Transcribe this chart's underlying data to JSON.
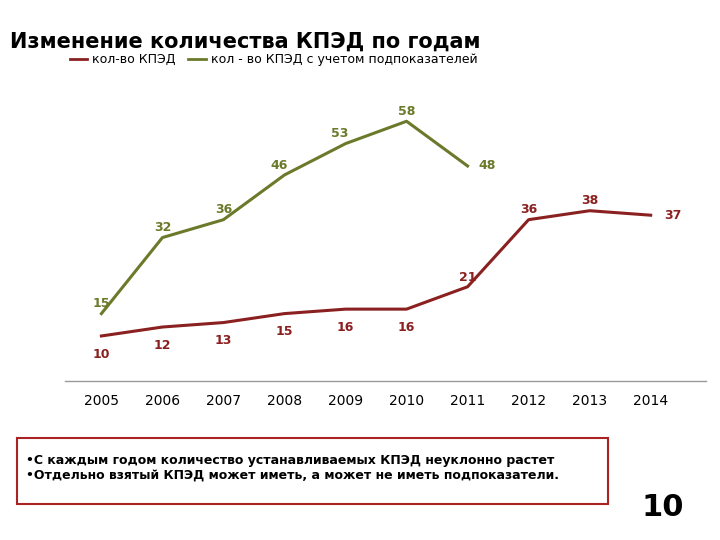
{
  "years": [
    2005,
    2006,
    2007,
    2008,
    2009,
    2010,
    2011,
    2012,
    2013,
    2014
  ],
  "kped": [
    10,
    12,
    13,
    15,
    16,
    16,
    21,
    36,
    38,
    37
  ],
  "kped_with_sub": [
    15,
    32,
    36,
    46,
    53,
    58,
    48,
    null,
    null,
    null
  ],
  "kped_color": "#8b2020",
  "kped_sub_color": "#6b7a2a",
  "title": "Изменение количества КПЭД по годам",
  "title_bg_color": "#c5c98a",
  "legend_label1": "кол-во КПЭД",
  "legend_label2": "кол - во КПЭД с учетом подпоказателей",
  "note_line1": "С каждым годом количество устанавливаемых КПЭД неуклонно растет",
  "note_line2": "Отдельно взятый КПЭД может иметь, а может не иметь подпоказатели.",
  "badge_number": "10",
  "badge_color": "#00dd44",
  "bg_color": "#ffffff",
  "note_border_color": "#aa2222"
}
